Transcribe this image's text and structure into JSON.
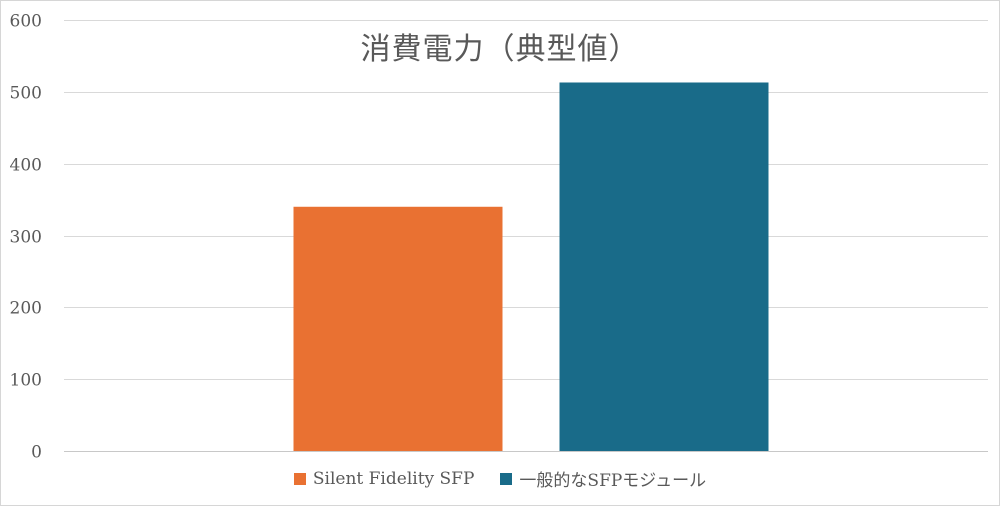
{
  "chart_data": {
    "type": "bar",
    "title": "消費電力（典型値）",
    "xlabel": "",
    "ylabel": "",
    "categories": [
      ""
    ],
    "ylim": [
      0,
      600
    ],
    "yticks": [
      0,
      100,
      200,
      300,
      400,
      500,
      600
    ],
    "grid": true,
    "legend_position": "bottom",
    "series": [
      {
        "name": "Silent Fidelity SFP",
        "values": [
          340
        ],
        "color": "#E97132"
      },
      {
        "name": "一般的なSFPモジュール",
        "values": [
          513
        ],
        "color": "#196B89"
      }
    ]
  }
}
